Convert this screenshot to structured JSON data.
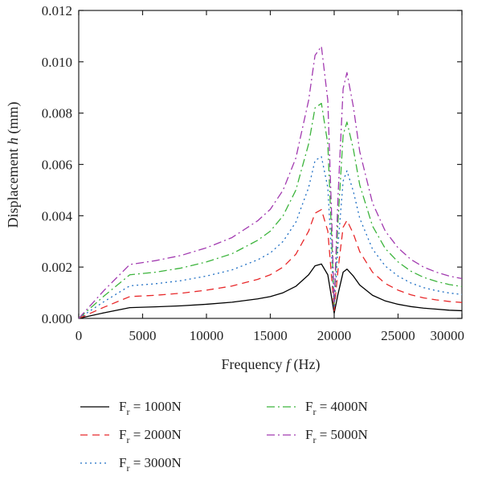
{
  "chart_data": {
    "type": "line",
    "title": "",
    "xlabel": "Frequency f (Hz)",
    "xlabel_parts": {
      "before": "Frequency ",
      "symbol": "f",
      "after": " (Hz)"
    },
    "ylabel": "Displacement h (mm)",
    "ylabel_parts": {
      "before": "Displacement ",
      "symbol": "h",
      "after": " (mm)"
    },
    "xlim": [
      0,
      30000
    ],
    "ylim": [
      0,
      0.012
    ],
    "xticks": [
      0,
      5000,
      10000,
      15000,
      20000,
      25000,
      30000
    ],
    "xtick_labels": [
      "0",
      "5000",
      "10000",
      "15000",
      "20000",
      "25000",
      "30000"
    ],
    "yticks": [
      0,
      0.002,
      0.004,
      0.006,
      0.008,
      0.01,
      0.012
    ],
    "ytick_labels": [
      "0.000",
      "0.002",
      "0.004",
      "0.006",
      "0.008",
      "0.010",
      "0.012"
    ],
    "grid": false,
    "legend_position": "bottom",
    "x": [
      0,
      2000,
      4000,
      6000,
      8000,
      10000,
      12000,
      14000,
      15000,
      16000,
      17000,
      18000,
      18500,
      19000,
      19500,
      19800,
      20000,
      20300,
      20700,
      21000,
      21500,
      22000,
      23000,
      24000,
      25000,
      26000,
      27000,
      28000,
      29000,
      30000
    ],
    "series": [
      {
        "name": "Fr = 1000N",
        "label_main": "F",
        "label_sub": "r",
        "label_rest": " = 1000N",
        "color": "#000000",
        "dash": "",
        "values": [
          0.0,
          0.00022,
          0.00042,
          0.00045,
          0.00049,
          0.00055,
          0.00063,
          0.00076,
          0.00085,
          0.001,
          0.00125,
          0.0017,
          0.00205,
          0.00212,
          0.0017,
          0.0008,
          0.0002,
          0.00095,
          0.0018,
          0.00192,
          0.00165,
          0.0013,
          0.0009,
          0.00068,
          0.00055,
          0.00046,
          0.0004,
          0.00036,
          0.00032,
          0.0003
        ]
      },
      {
        "name": "Fr = 2000N",
        "label_main": "F",
        "label_sub": "r",
        "label_rest": " = 2000N",
        "color": "#e8282a",
        "dash": "9,6",
        "values": [
          0.0,
          0.00044,
          0.00085,
          0.0009,
          0.00098,
          0.0011,
          0.00126,
          0.00152,
          0.0017,
          0.002,
          0.0025,
          0.0034,
          0.0041,
          0.00424,
          0.0034,
          0.0016,
          0.0003,
          0.0019,
          0.00355,
          0.00382,
          0.0033,
          0.0026,
          0.0018,
          0.00136,
          0.0011,
          0.00092,
          0.0008,
          0.00072,
          0.00066,
          0.00062
        ]
      },
      {
        "name": "Fr = 3000N",
        "label_main": "F",
        "label_sub": "r",
        "label_rest": " = 3000N",
        "color": "#1f6fc4",
        "dash": "2,4",
        "values": [
          0.0,
          0.00066,
          0.00127,
          0.00135,
          0.00147,
          0.00165,
          0.00189,
          0.00228,
          0.00255,
          0.003,
          0.00375,
          0.0051,
          0.00615,
          0.0063,
          0.0051,
          0.0024,
          0.0004,
          0.00285,
          0.00535,
          0.00575,
          0.00495,
          0.0039,
          0.0027,
          0.00204,
          0.00165,
          0.00138,
          0.0012,
          0.00108,
          0.00099,
          0.00093
        ]
      },
      {
        "name": "Fr = 4000N",
        "label_main": "F",
        "label_sub": "r",
        "label_rest": " = 4000N",
        "color": "#3cb43c",
        "dash": "10,4,2,4",
        "values": [
          0.0,
          0.00088,
          0.0017,
          0.0018,
          0.00196,
          0.0022,
          0.00252,
          0.00304,
          0.0034,
          0.004,
          0.005,
          0.0068,
          0.0082,
          0.00838,
          0.0068,
          0.0032,
          0.0005,
          0.0038,
          0.00715,
          0.00765,
          0.0066,
          0.0052,
          0.0036,
          0.00272,
          0.0022,
          0.00184,
          0.0016,
          0.00144,
          0.00132,
          0.00124
        ]
      },
      {
        "name": "Fr = 5000N",
        "label_main": "F",
        "label_sub": "r",
        "label_rest": " = 5000N",
        "color": "#a23ab0",
        "dash": "10,4,2,4",
        "values": [
          0.0,
          0.0011,
          0.0021,
          0.00225,
          0.00245,
          0.00275,
          0.00315,
          0.0038,
          0.00425,
          0.005,
          0.00625,
          0.0085,
          0.01025,
          0.0106,
          0.0085,
          0.004,
          0.0006,
          0.00475,
          0.00895,
          0.00958,
          0.00825,
          0.0065,
          0.0045,
          0.0034,
          0.00275,
          0.0023,
          0.002,
          0.0018,
          0.00165,
          0.00155
        ]
      }
    ]
  }
}
